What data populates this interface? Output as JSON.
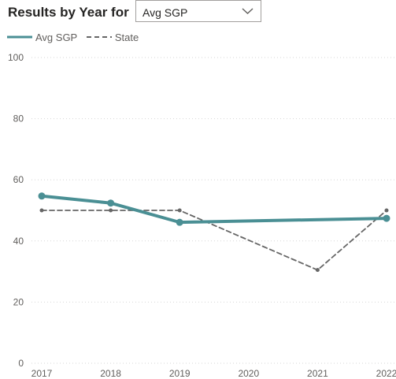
{
  "header": {
    "title": "Results by Year for",
    "dropdown": {
      "selected": "Avg SGP"
    }
  },
  "colors": {
    "series_primary": "#4a8f94",
    "series_state": "#666666",
    "grid": "#d6d6d6",
    "axis_text": "#605e5c"
  },
  "chart_data": {
    "type": "line",
    "x": [
      "2017",
      "2018",
      "2019",
      "2020",
      "2021",
      "2022"
    ],
    "ylim": [
      0,
      100
    ],
    "yticks": [
      0,
      20,
      40,
      60,
      80,
      100
    ],
    "grid": true,
    "legend_position": "top-left",
    "series": [
      {
        "name": "Avg SGP",
        "style": "solid",
        "x": [
          "2017",
          "2018",
          "2019",
          "2022"
        ],
        "values": [
          54.7,
          52.4,
          46.1,
          47.4
        ]
      },
      {
        "name": "State",
        "style": "dashed",
        "x": [
          "2017",
          "2018",
          "2019",
          "2021",
          "2022"
        ],
        "values": [
          50,
          50,
          50,
          30.5,
          50
        ]
      }
    ]
  }
}
